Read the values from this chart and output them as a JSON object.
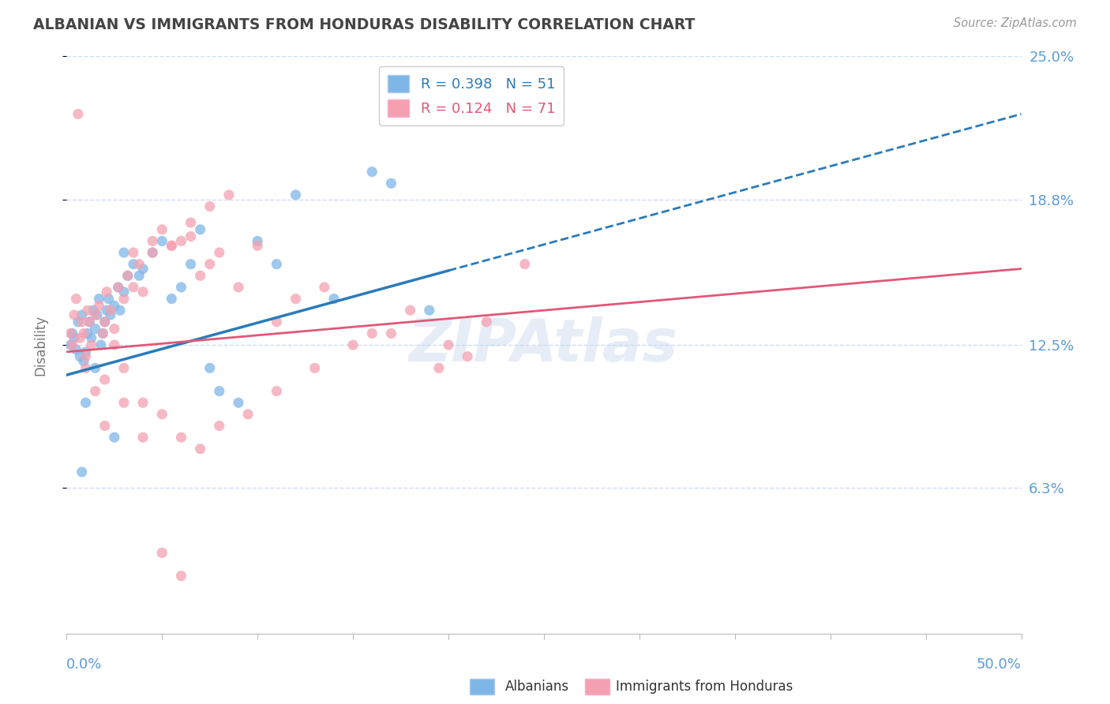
{
  "title": "ALBANIAN VS IMMIGRANTS FROM HONDURAS DISABILITY CORRELATION CHART",
  "source": "Source: ZipAtlas.com",
  "ylabel": "Disability",
  "legend_entry1": "R = 0.398   N = 51",
  "legend_entry2": "R = 0.124   N = 71",
  "x_min": 0.0,
  "x_max": 50.0,
  "y_min": 0.0,
  "y_max": 25.0,
  "y_ticks": [
    6.3,
    12.5,
    18.8,
    25.0
  ],
  "color_albanians": "#7EB6E8",
  "color_honduras": "#F4A0B0",
  "color_trendline_albanians": "#2B7BBA",
  "color_trendline_honduras": "#E05878",
  "color_axis_labels": "#5B9BD5",
  "color_grid": "#D0DCF0",
  "watermark": "ZIPAtlas",
  "alb_line_x0": 0.0,
  "alb_line_y0": 11.2,
  "alb_line_x1": 50.0,
  "alb_line_y1": 22.5,
  "alb_solid_end": 20.0,
  "hon_line_x0": 0.0,
  "hon_line_y0": 12.2,
  "hon_line_x1": 50.0,
  "hon_line_y1": 15.8,
  "albanians_x": [
    0.2,
    0.3,
    0.4,
    0.5,
    0.6,
    0.7,
    0.8,
    0.9,
    1.0,
    1.1,
    1.2,
    1.3,
    1.4,
    1.5,
    1.6,
    1.7,
    1.8,
    1.9,
    2.0,
    2.1,
    2.2,
    2.3,
    2.5,
    2.7,
    3.0,
    3.2,
    3.5,
    3.8,
    4.0,
    4.5,
    5.0,
    5.5,
    6.0,
    6.5,
    7.0,
    7.5,
    8.0,
    9.0,
    10.0,
    11.0,
    12.0,
    14.0,
    16.0,
    17.0,
    19.0,
    2.8,
    1.5,
    1.0,
    0.8,
    3.0,
    2.5
  ],
  "albanians_y": [
    12.5,
    13.0,
    12.8,
    12.3,
    13.5,
    12.0,
    13.8,
    11.8,
    12.2,
    13.0,
    13.5,
    12.8,
    14.0,
    13.2,
    13.8,
    14.5,
    12.5,
    13.0,
    13.5,
    14.0,
    14.5,
    13.8,
    14.2,
    15.0,
    14.8,
    15.5,
    16.0,
    15.5,
    15.8,
    16.5,
    17.0,
    14.5,
    15.0,
    16.0,
    17.5,
    11.5,
    10.5,
    10.0,
    17.0,
    16.0,
    19.0,
    14.5,
    20.0,
    19.5,
    14.0,
    14.0,
    11.5,
    10.0,
    7.0,
    16.5,
    8.5
  ],
  "honduras_x": [
    0.2,
    0.3,
    0.4,
    0.5,
    0.6,
    0.7,
    0.8,
    0.9,
    1.0,
    1.1,
    1.2,
    1.3,
    1.5,
    1.7,
    1.9,
    2.0,
    2.1,
    2.3,
    2.5,
    2.7,
    3.0,
    3.2,
    3.5,
    3.8,
    4.0,
    4.5,
    5.0,
    5.5,
    6.0,
    6.5,
    7.0,
    7.5,
    8.0,
    9.0,
    10.0,
    11.0,
    12.0,
    13.5,
    15.0,
    17.0,
    19.5,
    21.0,
    2.0,
    1.5,
    2.5,
    3.0,
    4.0,
    5.0,
    6.0,
    7.0,
    8.0,
    9.5,
    11.0,
    13.0,
    16.0,
    18.0,
    20.0,
    22.0,
    3.5,
    4.5,
    5.5,
    6.5,
    7.5,
    8.5,
    24.0,
    1.0,
    2.0,
    3.0,
    4.0,
    5.0,
    6.0
  ],
  "honduras_y": [
    13.0,
    12.5,
    13.8,
    14.5,
    22.5,
    12.8,
    13.5,
    13.0,
    12.0,
    14.0,
    13.5,
    12.5,
    13.8,
    14.2,
    13.0,
    13.5,
    14.8,
    14.0,
    13.2,
    15.0,
    14.5,
    15.5,
    15.0,
    16.0,
    14.8,
    16.5,
    17.5,
    16.8,
    17.0,
    17.8,
    15.5,
    16.0,
    16.5,
    15.0,
    16.8,
    13.5,
    14.5,
    15.0,
    12.5,
    13.0,
    11.5,
    12.0,
    11.0,
    10.5,
    12.5,
    11.5,
    10.0,
    9.5,
    8.5,
    8.0,
    9.0,
    9.5,
    10.5,
    11.5,
    13.0,
    14.0,
    12.5,
    13.5,
    16.5,
    17.0,
    16.8,
    17.2,
    18.5,
    19.0,
    16.0,
    11.5,
    9.0,
    10.0,
    8.5,
    3.5,
    2.5
  ]
}
